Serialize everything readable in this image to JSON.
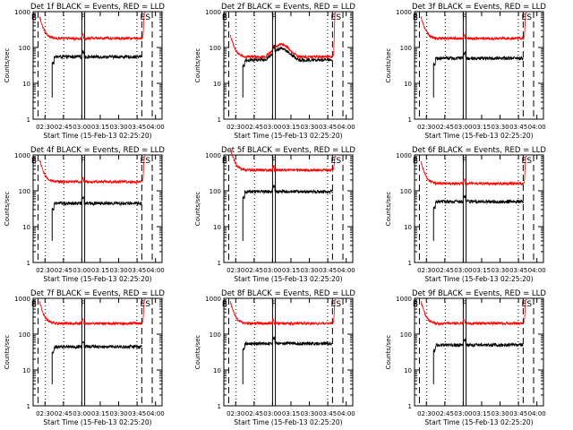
{
  "chart_data": [
    {
      "type": "line",
      "title": "Det 1f BLACK = Events, RED = LLD",
      "start": "02:25:20",
      "black": {
        "base": 55,
        "start_t": "02:36",
        "drop_t": "02:36"
      },
      "red": {
        "base": 180,
        "hump": 1.0
      },
      "annot": [
        "B",
        "F",
        "E",
        "S"
      ]
    },
    {
      "type": "line",
      "title": "Det 2f BLACK = Events, RED = LLD",
      "start": "02:25:20",
      "black": {
        "base": 45,
        "start_t": "02:36",
        "drop_t": "02:36"
      },
      "red": {
        "base": 55,
        "hump": 2.2
      },
      "annot": [
        "B",
        "F",
        "E",
        "S"
      ]
    },
    {
      "type": "line",
      "title": "Det 3f BLACK = Events, RED = LLD",
      "start": "02:25:20",
      "black": {
        "base": 50,
        "start_t": "02:36",
        "drop_t": "02:36"
      },
      "red": {
        "base": 180,
        "hump": 1.0
      },
      "annot": [
        "B",
        "F",
        "E",
        "S"
      ]
    },
    {
      "type": "line",
      "title": "Det 4f BLACK = Events, RED = LLD",
      "start": "02:25:20",
      "black": {
        "base": 45,
        "start_t": "02:36",
        "drop_t": "02:36"
      },
      "red": {
        "base": 180,
        "hump": 1.0
      },
      "annot": [
        "B",
        "F",
        "E",
        "S"
      ]
    },
    {
      "type": "line",
      "title": "Det 5f BLACK = Events, RED = LLD",
      "start": "02:25:20",
      "black": {
        "base": 95,
        "start_t": "02:36",
        "drop_t": "02:36"
      },
      "red": {
        "base": 380,
        "hump": 1.0
      },
      "annot": [
        "B",
        "F",
        "E",
        "S"
      ]
    },
    {
      "type": "line",
      "title": "Det 6f BLACK = Events, RED = LLD",
      "start": "02:25:20",
      "black": {
        "base": 50,
        "start_t": "02:36",
        "drop_t": "02:36"
      },
      "red": {
        "base": 160,
        "hump": 1.0
      },
      "annot": [
        "B",
        "F",
        "E",
        "S"
      ]
    },
    {
      "type": "line",
      "title": "Det 7f BLACK = Events, RED = LLD",
      "start": "02:25:20",
      "black": {
        "base": 45,
        "start_t": "02:36",
        "drop_t": "02:36"
      },
      "red": {
        "base": 200,
        "hump": 1.0
      },
      "annot": [
        "B",
        "F",
        "E",
        "S"
      ]
    },
    {
      "type": "line",
      "title": "Det 8f BLACK = Events, RED = LLD",
      "start": "02:25:20",
      "black": {
        "base": 55,
        "start_t": "02:36",
        "drop_t": "02:36"
      },
      "red": {
        "base": 200,
        "hump": 1.0
      },
      "annot": [
        "B",
        "F",
        "E",
        "S"
      ]
    },
    {
      "type": "line",
      "title": "Det 9f BLACK = Events, RED = LLD",
      "start": "02:25:20",
      "black": {
        "base": 50,
        "start_t": "02:36",
        "drop_t": "02:36"
      },
      "red": {
        "base": 200,
        "hump": 1.0
      },
      "annot": [
        "B",
        "F",
        "E",
        "S"
      ]
    }
  ],
  "common": {
    "ylabel": "Counts/sec",
    "xlabel": "Start Time (15-Feb-13 02:25:20)",
    "xticks": [
      "02:30",
      "02:45",
      "03:00",
      "03:15",
      "03:30",
      "03:45",
      "04:00"
    ],
    "yticks": [
      "1",
      "10",
      "100",
      "1000"
    ],
    "ylim": [
      1,
      1000
    ],
    "xlim_min": [
      -5,
      100
    ],
    "vlines_solid_min": [
      34.67,
      37.0
    ],
    "vlines_dotted_min": [
      5.0,
      20.0,
      79.5
    ],
    "vlines_dashed_min": [
      -1.0,
      83.5,
      92.0
    ],
    "colors": {
      "events": "#000000",
      "lld": "#ff0000",
      "axes": "#000000"
    }
  }
}
